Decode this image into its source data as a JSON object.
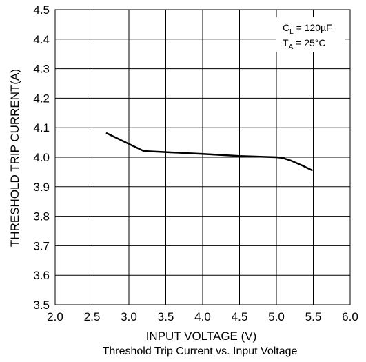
{
  "chart_data": {
    "type": "line",
    "caption": "Threshold Trip Current vs. Input Voltage",
    "xlabel": "INPUT VOLTAGE (V)",
    "ylabel": "THRESHOLD TRIP CURRENT(A)",
    "xlim": [
      2.0,
      6.0
    ],
    "ylim": [
      3.5,
      4.5
    ],
    "x_ticks": [
      "2.0",
      "2.5",
      "3.0",
      "3.5",
      "4.0",
      "4.5",
      "5.0",
      "5.5",
      "6.0"
    ],
    "y_ticks": [
      "3.5",
      "3.6",
      "3.7",
      "3.8",
      "3.9",
      "4.0",
      "4.1",
      "4.2",
      "4.3",
      "4.4",
      "4.5"
    ],
    "grid": true,
    "annotations": {
      "cl_main": "C",
      "cl_sub": "L",
      "cl_value": " = 120µF",
      "ta_main": "T",
      "ta_sub": "A",
      "ta_value": " = 25°C"
    },
    "series": [
      {
        "color": "#000000",
        "x": [
          2.7,
          3.0,
          3.2,
          4.0,
          4.5,
          5.0,
          5.08,
          5.2,
          5.35,
          5.48
        ],
        "y": [
          4.081,
          4.045,
          4.021,
          4.011,
          4.004,
          4.0,
          3.998,
          3.988,
          3.972,
          3.956
        ]
      }
    ]
  }
}
